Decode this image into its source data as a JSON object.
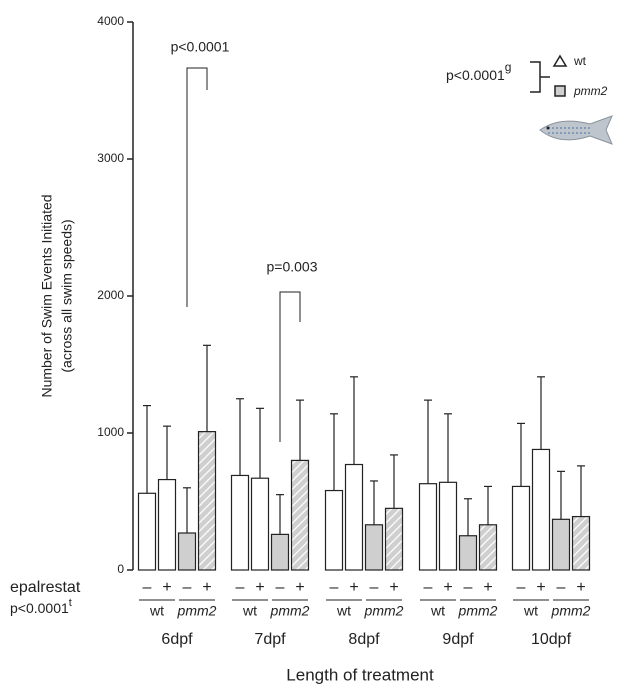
{
  "chart_data": {
    "type": "bar",
    "y_label": [
      "Number of Swim Events Initiated",
      "(across all swim speeds)"
    ],
    "x_label": "Length of treatment",
    "treatment_title": "epalrestat",
    "treatment_labels": [
      "–",
      "+"
    ],
    "genotype_labels": [
      "wt",
      "pmm2"
    ],
    "categories": [
      "6dpf",
      "7dpf",
      "8dpf",
      "9dpf",
      "10dpf"
    ],
    "series": [
      {
        "color": "#ffffff",
        "hatch": false,
        "values": [
          560,
          690,
          580,
          630,
          610
        ],
        "errors": [
          640,
          560,
          560,
          610,
          460
        ]
      },
      {
        "color": "#ffffff",
        "hatch": false,
        "values": [
          660,
          670,
          770,
          640,
          880
        ],
        "errors": [
          390,
          510,
          640,
          500,
          530
        ]
      },
      {
        "color": "#cfcfcf",
        "hatch": false,
        "values": [
          270,
          260,
          330,
          250,
          370
        ],
        "errors": [
          330,
          290,
          320,
          270,
          350
        ]
      },
      {
        "color": "#cfcfcf",
        "hatch": true,
        "values": [
          1010,
          800,
          450,
          330,
          390
        ],
        "errors": [
          630,
          440,
          390,
          280,
          370
        ]
      }
    ],
    "ylim": [
      0,
      4000
    ],
    "yticks": [
      0,
      1000,
      2000,
      3000,
      4000
    ],
    "annotations": [
      "p<0.0001",
      "p=0.003"
    ],
    "genotype_stat": {
      "text": "p<0.0001",
      "sup": "g"
    },
    "treatment_stat": {
      "text": "p<0.0001",
      "sup": "t"
    },
    "legend": [
      "wt",
      "pmm2"
    ]
  }
}
